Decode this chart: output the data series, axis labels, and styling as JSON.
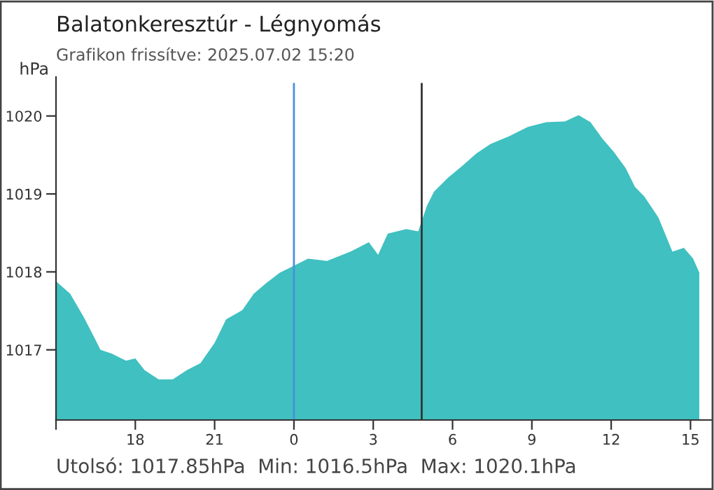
{
  "chart_data": {
    "type": "area",
    "title": "Balatonkeresztúr - Légnyomás",
    "subtitle": "Grafikon frissítve: 2025.07.02 15:20",
    "ylabel": "hPa",
    "annotations": [
      "Utolsó: 1017.85hPa  Min: 1016.5hPa  Max: 1020.1hPa"
    ],
    "xlim": [
      "2025-07-01T15:00",
      "2025-07-02T15:47"
    ],
    "ylim": [
      1016.1,
      1020.5
    ],
    "xticks": [
      {
        "value": "2025-07-01T15:00",
        "label": null
      },
      {
        "value": "2025-07-01T18:00",
        "label": "18"
      },
      {
        "value": "2025-07-01T21:00",
        "label": "21"
      },
      {
        "value": "2025-07-02T00:00",
        "label": "0"
      },
      {
        "value": "2025-07-02T03:00",
        "label": "3"
      },
      {
        "value": "2025-07-02T06:00",
        "label": "6"
      },
      {
        "value": "2025-07-02T09:00",
        "label": "9"
      },
      {
        "value": "2025-07-02T12:00",
        "label": "12"
      },
      {
        "value": "2025-07-02T15:00",
        "label": "15"
      }
    ],
    "yticks": [
      1017,
      1018,
      1019,
      1020
    ],
    "grid": false,
    "legend": false,
    "ref_lines": [
      {
        "axis": "x",
        "value": "2025-07-02T00:00",
        "color": "#4a90d9"
      },
      {
        "axis": "x",
        "value": "2025-07-02T04:50",
        "color": "#333333"
      }
    ],
    "series": [
      {
        "color": "#40c0c0",
        "x": [
          "2025-07-01T15:00",
          "2025-07-01T15:32",
          "2025-07-01T16:03",
          "2025-07-01T16:25",
          "2025-07-01T16:41",
          "2025-07-01T17:07",
          "2025-07-01T17:39",
          "2025-07-01T18:00",
          "2025-07-01T18:21",
          "2025-07-01T18:53",
          "2025-07-01T19:25",
          "2025-07-01T19:57",
          "2025-07-01T20:28",
          "2025-07-01T21:00",
          "2025-07-01T21:26",
          "2025-07-01T22:03",
          "2025-07-01T22:29",
          "2025-07-01T22:56",
          "2025-07-01T23:28",
          "2025-07-01T23:50",
          "2025-07-02T00:32",
          "2025-07-02T01:15",
          "2025-07-02T02:08",
          "2025-07-02T02:50",
          "2025-07-02T03:11",
          "2025-07-02T03:33",
          "2025-07-02T04:15",
          "2025-07-02T04:42",
          "2025-07-02T05:02",
          "2025-07-02T05:18",
          "2025-07-02T05:50",
          "2025-07-02T06:22",
          "2025-07-02T06:54",
          "2025-07-02T07:26",
          "2025-07-02T08:08",
          "2025-07-02T08:51",
          "2025-07-02T09:33",
          "2025-07-02T10:15",
          "2025-07-02T10:46",
          "2025-07-02T11:13",
          "2025-07-02T11:40",
          "2025-07-02T12:06",
          "2025-07-02T12:33",
          "2025-07-02T12:54",
          "2025-07-02T13:15",
          "2025-07-02T13:47",
          "2025-07-02T14:19",
          "2025-07-02T14:45",
          "2025-07-02T15:06",
          "2025-07-02T15:20"
        ],
        "values": [
          1017.88,
          1017.72,
          1017.42,
          1017.18,
          1017.0,
          1016.95,
          1016.86,
          1016.89,
          1016.74,
          1016.62,
          1016.62,
          1016.74,
          1016.83,
          1017.09,
          1017.39,
          1017.51,
          1017.72,
          1017.85,
          1017.99,
          1018.05,
          1018.17,
          1018.14,
          1018.26,
          1018.38,
          1018.22,
          1018.49,
          1018.55,
          1018.52,
          1018.85,
          1019.03,
          1019.21,
          1019.36,
          1019.52,
          1019.64,
          1019.74,
          1019.86,
          1019.92,
          1019.93,
          1020.01,
          1019.92,
          1019.71,
          1019.54,
          1019.33,
          1019.09,
          1018.97,
          1018.7,
          1018.26,
          1018.31,
          1018.17,
          1017.99
        ]
      }
    ]
  }
}
